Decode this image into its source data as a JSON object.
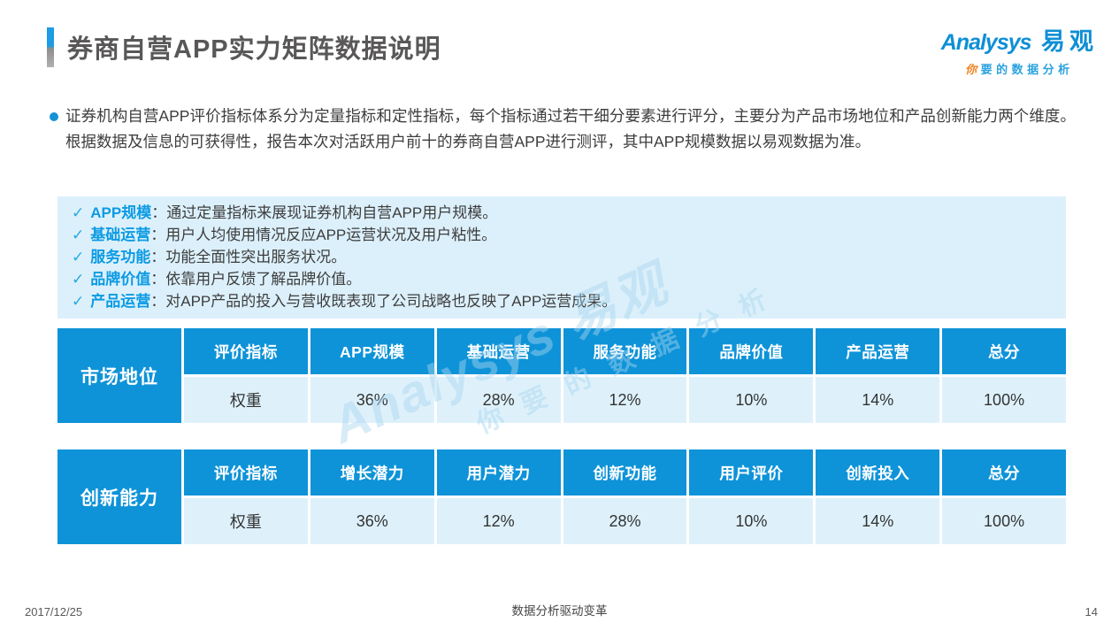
{
  "header": {
    "title": "券商自营APP实力矩阵数据说明"
  },
  "logo": {
    "brand_en": "Analysys",
    "brand_cn": "易观",
    "tagline_first": "你",
    "tagline_rest": "要的数据分析"
  },
  "intro": {
    "text": "证券机构自营APP评价指标体系分为定量指标和定性指标，每个指标通过若干细分要素进行评分，主要分为产品市场地位和产品创新能力两个维度。根据数据及信息的可获得性，报告本次对活跃用户前十的券商自营APP进行测评，其中APP规模数据以易观数据为准。"
  },
  "criteria_box": {
    "check_glyph": "✓",
    "colon": "：",
    "items": [
      {
        "label": "APP规模",
        "desc": "通过定量指标来展现证券机构自营APP用户规模。"
      },
      {
        "label": "基础运营",
        "desc": "用户人均使用情况反应APP运营状况及用户粘性。"
      },
      {
        "label": "服务功能",
        "desc": "功能全面性突出服务状况。"
      },
      {
        "label": "品牌价值",
        "desc": "依靠用户反馈了解品牌价值。"
      },
      {
        "label": "产品运营",
        "desc": "对APP产品的投入与营收既表现了公司战略也反映了APP运营成果。"
      }
    ]
  },
  "tables": [
    {
      "row_label": "市场地位",
      "headers": [
        "评价指标",
        "APP规模",
        "基础运营",
        "服务功能",
        "品牌价值",
        "产品运营",
        "总分"
      ],
      "weight_label": "权重",
      "weights": [
        "36%",
        "28%",
        "12%",
        "10%",
        "14%",
        "100%"
      ]
    },
    {
      "row_label": "创新能力",
      "headers": [
        "评价指标",
        "增长潜力",
        "用户潜力",
        "创新功能",
        "用户评价",
        "创新投入",
        "总分"
      ],
      "weight_label": "权重",
      "weights": [
        "36%",
        "12%",
        "28%",
        "10%",
        "14%",
        "100%"
      ]
    }
  ],
  "watermark": {
    "line1": "Analysys 易观",
    "line2": "你要的数据分析"
  },
  "footer": {
    "date": "2017/12/25",
    "slogan": "数据分析驱动变革",
    "page_number": "14"
  },
  "colors": {
    "accent_blue": "#0e93d8",
    "pale_blue": "#def1fb",
    "label_blue": "#0c9be4",
    "check_blue": "#25a9e0",
    "title_gray": "#595757",
    "logo_blue": "#0f8fd5",
    "logo_orange": "#f0831e"
  }
}
